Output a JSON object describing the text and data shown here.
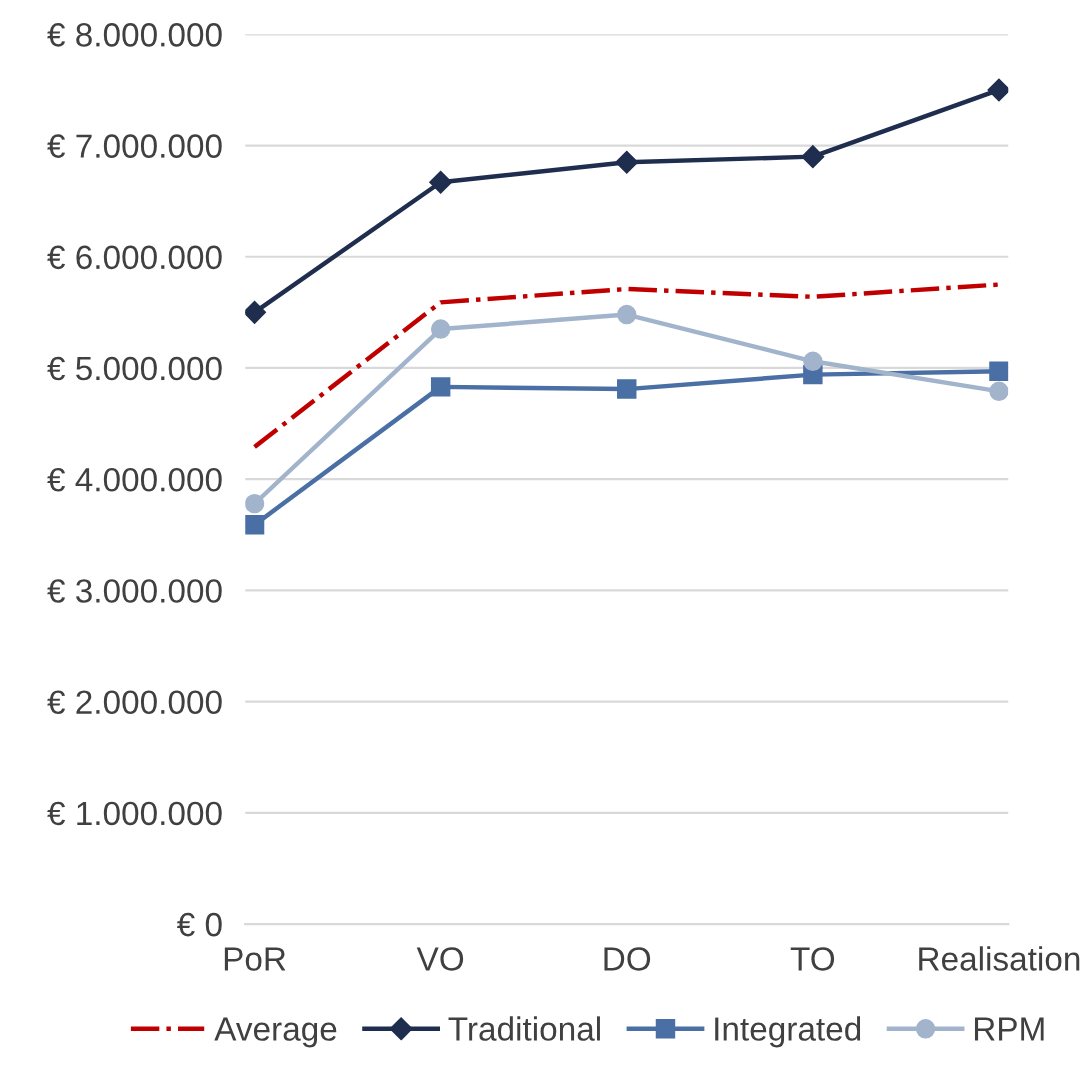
{
  "chart_data": {
    "type": "line",
    "categories": [
      "PoR",
      "VO",
      "DO",
      "TO",
      "Realisation"
    ],
    "series": [
      {
        "name": "Average",
        "color": "#c00000",
        "line_style": "dashdot",
        "marker": "none",
        "values": [
          4290000,
          5590000,
          5710000,
          5640000,
          5750000
        ]
      },
      {
        "name": "Traditional",
        "color": "#1f2d4e",
        "line_style": "solid",
        "marker": "diamond",
        "values": [
          5500000,
          6670000,
          6850000,
          6900000,
          7500000
        ]
      },
      {
        "name": "Integrated",
        "color": "#4a6fa5",
        "line_style": "solid",
        "marker": "square",
        "values": [
          3590000,
          4830000,
          4810000,
          4940000,
          4970000
        ]
      },
      {
        "name": "RPM",
        "color": "#a2b4cc",
        "line_style": "solid",
        "marker": "circle",
        "values": [
          3780000,
          5350000,
          5480000,
          5060000,
          4790000
        ]
      }
    ],
    "ylim": [
      0,
      8000000
    ],
    "yticks": [
      {
        "value": 0,
        "label": "€ 0"
      },
      {
        "value": 1000000,
        "label": "€ 1.000.000"
      },
      {
        "value": 2000000,
        "label": "€ 2.000.000"
      },
      {
        "value": 3000000,
        "label": "€ 3.000.000"
      },
      {
        "value": 4000000,
        "label": "€ 4.000.000"
      },
      {
        "value": 5000000,
        "label": "€ 5.000.000"
      },
      {
        "value": 6000000,
        "label": "€ 6.000.000"
      },
      {
        "value": 7000000,
        "label": "€ 7.000.000"
      },
      {
        "value": 8000000,
        "label": "€ 8.000.000"
      }
    ],
    "grid": "y",
    "legend": "bottom"
  }
}
